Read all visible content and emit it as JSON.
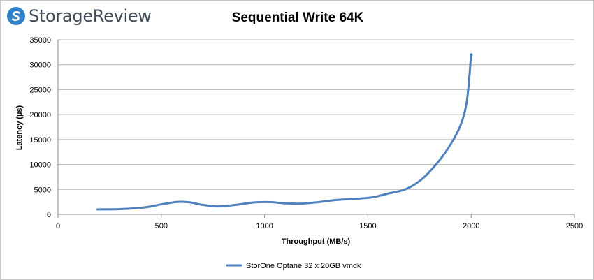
{
  "logo": {
    "brand": "StorageReview",
    "icon": "storagereview-logo-icon",
    "accent": "#2f80c9"
  },
  "chart_data": {
    "type": "line",
    "title": "Sequential Write 64K",
    "xlabel": "Throughput (MB/s)",
    "ylabel": "Latency (µs)",
    "xlim": [
      0,
      2500
    ],
    "ylim": [
      0,
      35000
    ],
    "xticks": [
      0,
      500,
      1000,
      1500,
      2000,
      2500
    ],
    "yticks": [
      0,
      5000,
      10000,
      15000,
      20000,
      25000,
      30000,
      35000
    ],
    "grid": true,
    "legend": "bottom",
    "series": [
      {
        "name": "StorOne Optane 32 x 20GB vmdk",
        "color": "#4f81bd",
        "points": [
          [
            190,
            1000
          ],
          [
            300,
            1050
          ],
          [
            420,
            1400
          ],
          [
            500,
            2000
          ],
          [
            580,
            2500
          ],
          [
            640,
            2400
          ],
          [
            700,
            1900
          ],
          [
            780,
            1600
          ],
          [
            860,
            1900
          ],
          [
            950,
            2400
          ],
          [
            1030,
            2450
          ],
          [
            1100,
            2200
          ],
          [
            1180,
            2150
          ],
          [
            1260,
            2450
          ],
          [
            1340,
            2850
          ],
          [
            1430,
            3100
          ],
          [
            1520,
            3400
          ],
          [
            1600,
            4200
          ],
          [
            1680,
            5000
          ],
          [
            1760,
            7000
          ],
          [
            1840,
            10500
          ],
          [
            1900,
            14000
          ],
          [
            1950,
            18000
          ],
          [
            1980,
            23000
          ],
          [
            2000,
            32000
          ]
        ]
      }
    ]
  }
}
